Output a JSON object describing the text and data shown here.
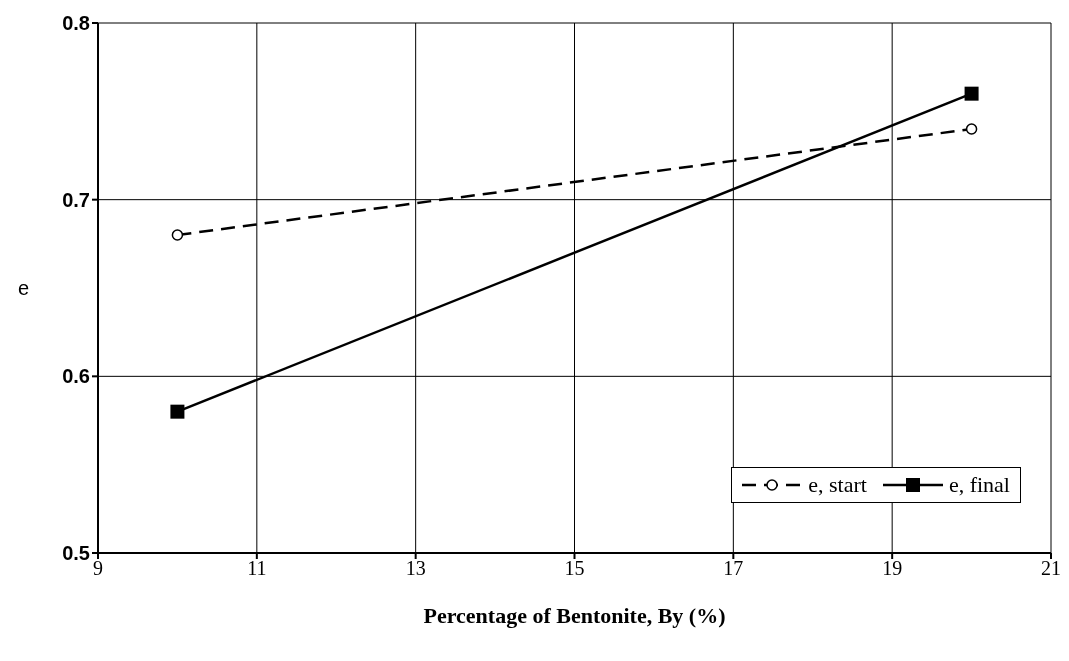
{
  "chart_data": {
    "type": "line",
    "xlabel": "Percentage of Bentonite, By (%)",
    "ylabel": "e",
    "x": [
      10,
      20
    ],
    "series": [
      {
        "name": "e, start",
        "color": "#000000",
        "values": [
          0.68,
          0.74
        ],
        "marker": "circle",
        "line_style": "dashed"
      },
      {
        "name": "e, final",
        "color": "#000000",
        "values": [
          0.58,
          0.76
        ],
        "marker": "square",
        "line_style": "solid"
      }
    ],
    "xlim": [
      9,
      21
    ],
    "xticks": [
      9,
      11,
      13,
      15,
      17,
      19,
      21
    ],
    "ylim": [
      0.5,
      0.8
    ],
    "yticks": [
      0.5,
      0.6,
      0.7,
      0.8
    ],
    "grid": true,
    "legend": "bottom right"
  }
}
